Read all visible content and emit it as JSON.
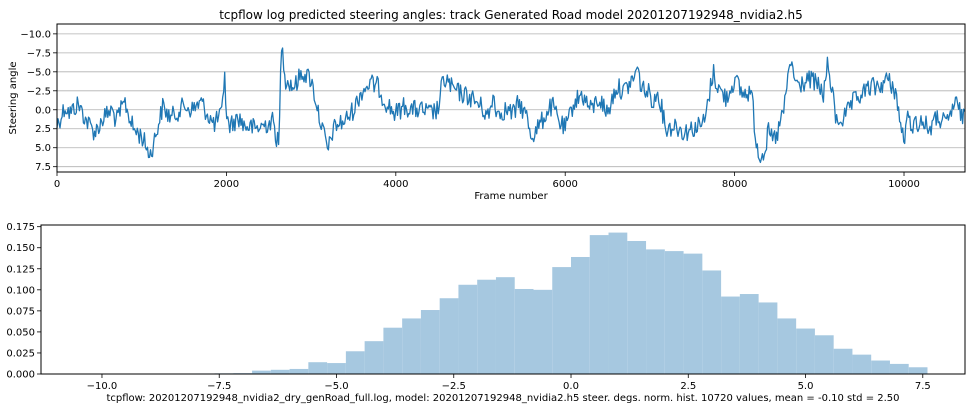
{
  "chart_data": [
    {
      "type": "line",
      "title": "tcpflow log predicted steering angles: track Generated Road model 20201207192948_nvidia2.h5",
      "xlabel": "Frame number",
      "ylabel": "Steering angle",
      "xlim": [
        0,
        10720
      ],
      "ylim": [
        8.2,
        -11.3
      ],
      "y_inverted": true,
      "grid": {
        "x": false,
        "y": true
      },
      "x_ticks": [
        0,
        2000,
        4000,
        6000,
        8000,
        10000
      ],
      "x_tick_labels": [
        "0",
        "2000",
        "4000",
        "6000",
        "8000",
        "10000"
      ],
      "y_ticks": [
        -10.0,
        -7.5,
        -5.0,
        -2.5,
        0.0,
        2.5,
        5.0,
        7.5
      ],
      "y_tick_labels": [
        "−10.0",
        "−7.5",
        "−5.0",
        "−2.5",
        "0.0",
        "2.5",
        "5.0",
        "7.5"
      ],
      "series": [
        {
          "color": "#1f77b4",
          "x": [
            0,
            100,
            150,
            250,
            350,
            450,
            550,
            650,
            700,
            800,
            900,
            1000,
            1100,
            1150,
            1250,
            1300,
            1350,
            1500,
            1600,
            1700,
            1800,
            1850,
            1950,
            1980,
            2000,
            2050,
            2150,
            2200,
            2350,
            2550,
            2620,
            2650,
            2700,
            2800,
            2900,
            3000,
            3100,
            3200,
            3250,
            3300,
            3400,
            3500,
            3600,
            3700,
            3800,
            3850,
            3950,
            4000,
            4100,
            4200,
            4300,
            4400,
            4500,
            4550,
            4600,
            4650,
            4700,
            4800,
            4900,
            5000,
            5100,
            5150,
            5200,
            5300,
            5400,
            5450,
            5500,
            5550,
            5600,
            5700,
            5800,
            5850,
            5950,
            6000,
            6050,
            6100,
            6200,
            6300,
            6400,
            6500,
            6600,
            6700,
            6800,
            6850,
            6900,
            7000,
            7050,
            7100,
            7150,
            7200,
            7300,
            7400,
            7500,
            7600,
            7650,
            7700,
            7750,
            7800,
            7900,
            8000,
            8100,
            8200,
            8250,
            8300,
            8350,
            8400,
            8450,
            8500,
            8600,
            8650,
            8700,
            8750,
            8800,
            8900,
            9000,
            9050,
            9100,
            9150,
            9200,
            9300,
            9400,
            9500,
            9600,
            9700,
            9800,
            9900,
            9950,
            10000,
            10050,
            10100,
            10200,
            10300,
            10400,
            10450,
            10500,
            10600,
            10720
          ],
          "values": [
            2.0,
            -0.5,
            0.5,
            -0.8,
            1.5,
            3.0,
            1.0,
            0.0,
            1.5,
            -1.0,
            2.5,
            3.5,
            6.0,
            4.0,
            -0.5,
            0.5,
            1.0,
            -0.5,
            0.0,
            -1.0,
            1.0,
            2.0,
            0.5,
            -5.5,
            1.5,
            2.0,
            1.0,
            2.0,
            2.5,
            1.5,
            5.0,
            -9.0,
            -4.0,
            -3.0,
            -5.0,
            -4.0,
            1.0,
            5.5,
            3.0,
            2.0,
            1.5,
            0.0,
            -2.5,
            -3.5,
            -3.0,
            -1.5,
            0.0,
            0.5,
            -0.5,
            0.0,
            0.0,
            0.5,
            0.0,
            -3.5,
            -4.0,
            -3.0,
            -2.5,
            -2.0,
            -1.5,
            -0.5,
            1.0,
            -2.0,
            0.5,
            0.0,
            0.5,
            -1.0,
            0.0,
            1.0,
            3.5,
            2.0,
            0.0,
            -0.5,
            2.0,
            2.5,
            1.0,
            -1.0,
            -2.0,
            0.0,
            -1.5,
            0.5,
            -3.0,
            -2.5,
            -4.0,
            -5.5,
            -3.0,
            -2.0,
            -1.0,
            -2.5,
            0.5,
            2.5,
            2.0,
            3.0,
            2.5,
            2.0,
            1.5,
            -2.0,
            -5.0,
            -3.0,
            -1.5,
            -4.0,
            -2.0,
            -2.5,
            4.0,
            6.0,
            5.5,
            3.0,
            4.0,
            3.5,
            -1.0,
            -6.5,
            -4.5,
            -3.0,
            -3.5,
            -4.0,
            -3.0,
            -2.0,
            -6.0,
            -2.5,
            1.5,
            1.0,
            -1.0,
            -2.0,
            -3.0,
            -3.0,
            -4.0,
            -2.5,
            1.5,
            4.0,
            1.0,
            2.0,
            1.5,
            2.5,
            1.0,
            1.5,
            2.0,
            -1.0,
            1.5
          ]
        }
      ]
    },
    {
      "type": "bar",
      "subtype": "histogram",
      "xlabel": "tcpflow: 20201207192948_nvidia2_dry_genRoad_full.log, model: 20201207192948_nvidia2.h5 steer. degs. norm. hist. 10720 values, mean = -0.10 std = 2.50",
      "xlim": [
        -11.3,
        8.4
      ],
      "ylim": [
        0,
        0.177
      ],
      "grid": {
        "x": false,
        "y": false
      },
      "x_ticks": [
        -10.0,
        -7.5,
        -5.0,
        -2.5,
        0.0,
        2.5,
        5.0,
        7.5
      ],
      "x_tick_labels": [
        "−10.0",
        "−7.5",
        "−5.0",
        "−2.5",
        "0.0",
        "2.5",
        "5.0",
        "7.5"
      ],
      "y_ticks": [
        0.0,
        0.025,
        0.05,
        0.075,
        0.1,
        0.125,
        0.15,
        0.175
      ],
      "y_tick_labels": [
        "0.000",
        "0.025",
        "0.050",
        "0.075",
        "0.100",
        "0.125",
        "0.150",
        "0.175"
      ],
      "color": "#a6c8e0",
      "bin_width": 0.4,
      "bin_starts": [
        -10.8,
        -10.4,
        -10.0,
        -9.6,
        -9.2,
        -8.8,
        -8.4,
        -8.0,
        -7.6,
        -7.2,
        -6.8,
        -6.4,
        -6.0,
        -5.6,
        -5.2,
        -4.8,
        -4.4,
        -4.0,
        -3.6,
        -3.2,
        -2.8,
        -2.4,
        -2.0,
        -1.6,
        -1.2,
        -0.8,
        -0.4,
        0.0,
        0.4,
        0.8,
        1.2,
        1.6,
        2.0,
        2.4,
        2.8,
        3.2,
        3.6,
        4.0,
        4.4,
        4.8,
        5.2,
        5.6,
        6.0,
        6.4,
        6.8,
        7.2
      ],
      "values": [
        0.0005,
        0.0003,
        0.0002,
        0.0002,
        0.0,
        0.0003,
        0.0005,
        0.0006,
        0.0008,
        0.001,
        0.004,
        0.005,
        0.006,
        0.014,
        0.013,
        0.027,
        0.039,
        0.055,
        0.066,
        0.076,
        0.09,
        0.106,
        0.112,
        0.115,
        0.101,
        0.1,
        0.127,
        0.139,
        0.165,
        0.168,
        0.158,
        0.148,
        0.146,
        0.143,
        0.123,
        0.092,
        0.095,
        0.085,
        0.066,
        0.054,
        0.046,
        0.03,
        0.023,
        0.016,
        0.012,
        0.008
      ]
    }
  ]
}
